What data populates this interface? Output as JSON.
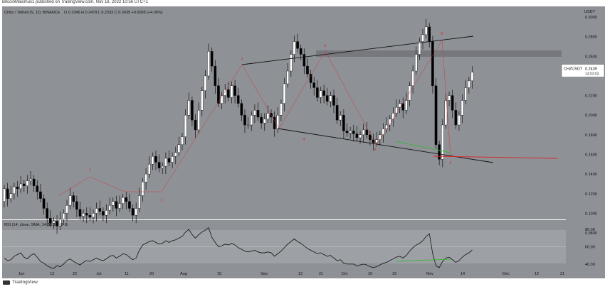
{
  "caption": "BitcoinMaximus1 published on TradingView.com, Nov 18, 2022 10:56 UTC+1",
  "footer": "TradingView",
  "header": {
    "symbol": "Chiliz / TetherUS, 1D, BINANCE",
    "ohlc": "O 0.2345  H 0.2479  L 0.2333  C 0.2439  +0.0095 (+4.05%)"
  },
  "price_axis": {
    "unit": "USDT",
    "ticks": [
      "0.3000",
      "0.2800",
      "0.2600",
      "0.2400",
      "0.2200",
      "0.2000",
      "0.1800",
      "0.1600",
      "0.1400",
      "0.1200",
      "0.1000",
      "0.0800"
    ],
    "current_label": "CHZUSDT",
    "current_price": "0.2439",
    "countdown": "14:03:03"
  },
  "time_axis": [
    "Jun",
    "13",
    "22",
    "Jul",
    "11",
    "20",
    "Aug",
    "15",
    "Sep",
    "12",
    "21",
    "Oct",
    "10",
    "19",
    "Nov",
    "14",
    "Dec",
    "12",
    "21"
  ],
  "wave_labels": [
    "1",
    "2",
    "3",
    "4",
    "5",
    "4",
    "B",
    "5"
  ],
  "rsi": {
    "legend": "RSI (14, close, SMA, 14, 2)",
    "value": "56.18",
    "ticks": [
      "80.00",
      "60.00",
      "40.00"
    ]
  },
  "colors": {
    "pane_bg": "#8e9196",
    "candle_up": "#ffffff",
    "candle_down": "#000000",
    "wave": "#cc3b3b",
    "divergence": "#3fb53f",
    "support": "#e01f1f",
    "rsi_line": "#111111"
  },
  "chart_data": {
    "type": "candlestick",
    "title": "",
    "ylim": [
      0.065,
      0.325
    ],
    "yscale": "linear",
    "grid": false,
    "y_ticks": [
      0.08,
      0.1,
      0.12,
      0.14,
      0.16,
      0.18,
      0.2,
      0.22,
      0.24,
      0.26,
      0.28,
      0.3
    ],
    "close": [
      0.125,
      0.115,
      0.12,
      0.127,
      0.125,
      0.13,
      0.128,
      0.133,
      0.135,
      0.128,
      0.122,
      0.115,
      0.105,
      0.095,
      0.09,
      0.092,
      0.087,
      0.094,
      0.1,
      0.108,
      0.118,
      0.112,
      0.104,
      0.097,
      0.1,
      0.098,
      0.096,
      0.1,
      0.105,
      0.102,
      0.098,
      0.103,
      0.108,
      0.112,
      0.105,
      0.11,
      0.116,
      0.112,
      0.105,
      0.098,
      0.105,
      0.118,
      0.132,
      0.14,
      0.15,
      0.158,
      0.152,
      0.146,
      0.148,
      0.156,
      0.152,
      0.158,
      0.162,
      0.17,
      0.178,
      0.2,
      0.215,
      0.195,
      0.185,
      0.205,
      0.225,
      0.24,
      0.265,
      0.25,
      0.23,
      0.212,
      0.22,
      0.226,
      0.218,
      0.23,
      0.22,
      0.212,
      0.2,
      0.19,
      0.19,
      0.2,
      0.205,
      0.198,
      0.192,
      0.196,
      0.202,
      0.198,
      0.186,
      0.2,
      0.212,
      0.232,
      0.245,
      0.262,
      0.275,
      0.268,
      0.262,
      0.25,
      0.242,
      0.233,
      0.228,
      0.218,
      0.225,
      0.22,
      0.214,
      0.22,
      0.21,
      0.195,
      0.2,
      0.184,
      0.182,
      0.184,
      0.181,
      0.177,
      0.18,
      0.185,
      0.18,
      0.175,
      0.172,
      0.175,
      0.18,
      0.186,
      0.19,
      0.196,
      0.202,
      0.208,
      0.212,
      0.205,
      0.215,
      0.23,
      0.245,
      0.262,
      0.275,
      0.282,
      0.29,
      0.275,
      0.23,
      0.17,
      0.155,
      0.19,
      0.215,
      0.22,
      0.205,
      0.19,
      0.2,
      0.215,
      0.228,
      0.235,
      0.2439
    ],
    "rsi": [
      47,
      44,
      45,
      49,
      51,
      53,
      48,
      46,
      50,
      52,
      48,
      43,
      41,
      38,
      36,
      35,
      38,
      37,
      40,
      44,
      46,
      43,
      41,
      39,
      42,
      44,
      43,
      45,
      47,
      45,
      44,
      46,
      49,
      50,
      47,
      49,
      52,
      51,
      48,
      45,
      47,
      56,
      62,
      64,
      66,
      67,
      65,
      63,
      64,
      67,
      65,
      67,
      68,
      70,
      72,
      77,
      80,
      74,
      70,
      74,
      77,
      79,
      82,
      71,
      65,
      60,
      61,
      63,
      62,
      64,
      62,
      59,
      57,
      55,
      54,
      55,
      56,
      54,
      53,
      53,
      54,
      53,
      49,
      52,
      55,
      59,
      63,
      66,
      69,
      66,
      64,
      61,
      58,
      56,
      54,
      52,
      53,
      51,
      49,
      50,
      47,
      44,
      45,
      41,
      40,
      40,
      40,
      38,
      39,
      40,
      39,
      37,
      36,
      37,
      39,
      41,
      42,
      44,
      46,
      48,
      49,
      47,
      50,
      55,
      59,
      62,
      64,
      67,
      72,
      75,
      52,
      38,
      36,
      43,
      47,
      48,
      45,
      42,
      44,
      48,
      51,
      53,
      56.18
    ]
  }
}
